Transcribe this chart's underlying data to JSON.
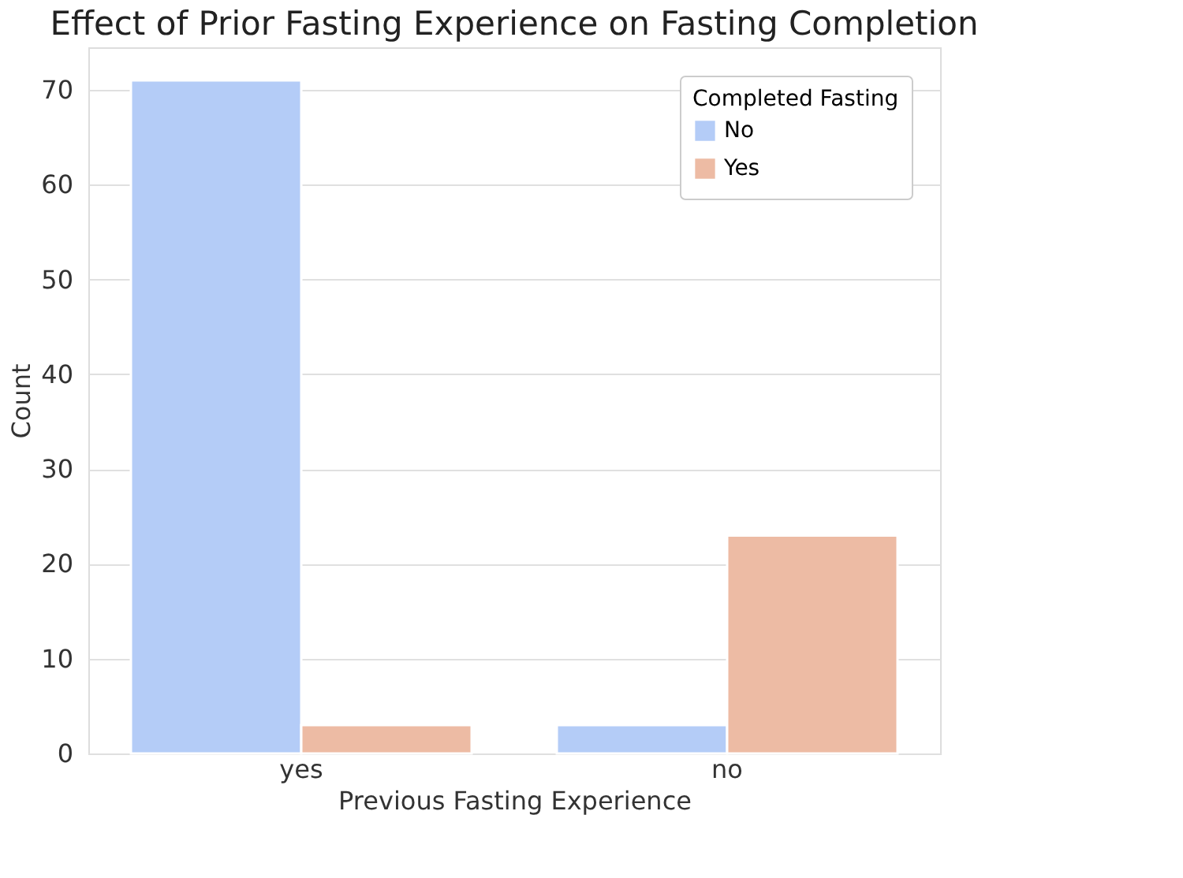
{
  "chart_data": {
    "type": "bar",
    "title": "Effect of Prior Fasting Experience on Fasting Completion",
    "xlabel": "Previous Fasting Experience",
    "ylabel": "Count",
    "legend_title": "Completed Fasting",
    "categories": [
      "yes",
      "no"
    ],
    "series": [
      {
        "name": "No",
        "color": "#b4ccf7",
        "values": [
          71,
          3
        ]
      },
      {
        "name": "Yes",
        "color": "#edbba4",
        "values": [
          3,
          23
        ]
      }
    ],
    "ylim": [
      0,
      74.5
    ],
    "yticks": [
      0,
      10,
      20,
      30,
      40,
      50,
      60,
      70
    ],
    "grid": "y",
    "legend": "top right"
  }
}
